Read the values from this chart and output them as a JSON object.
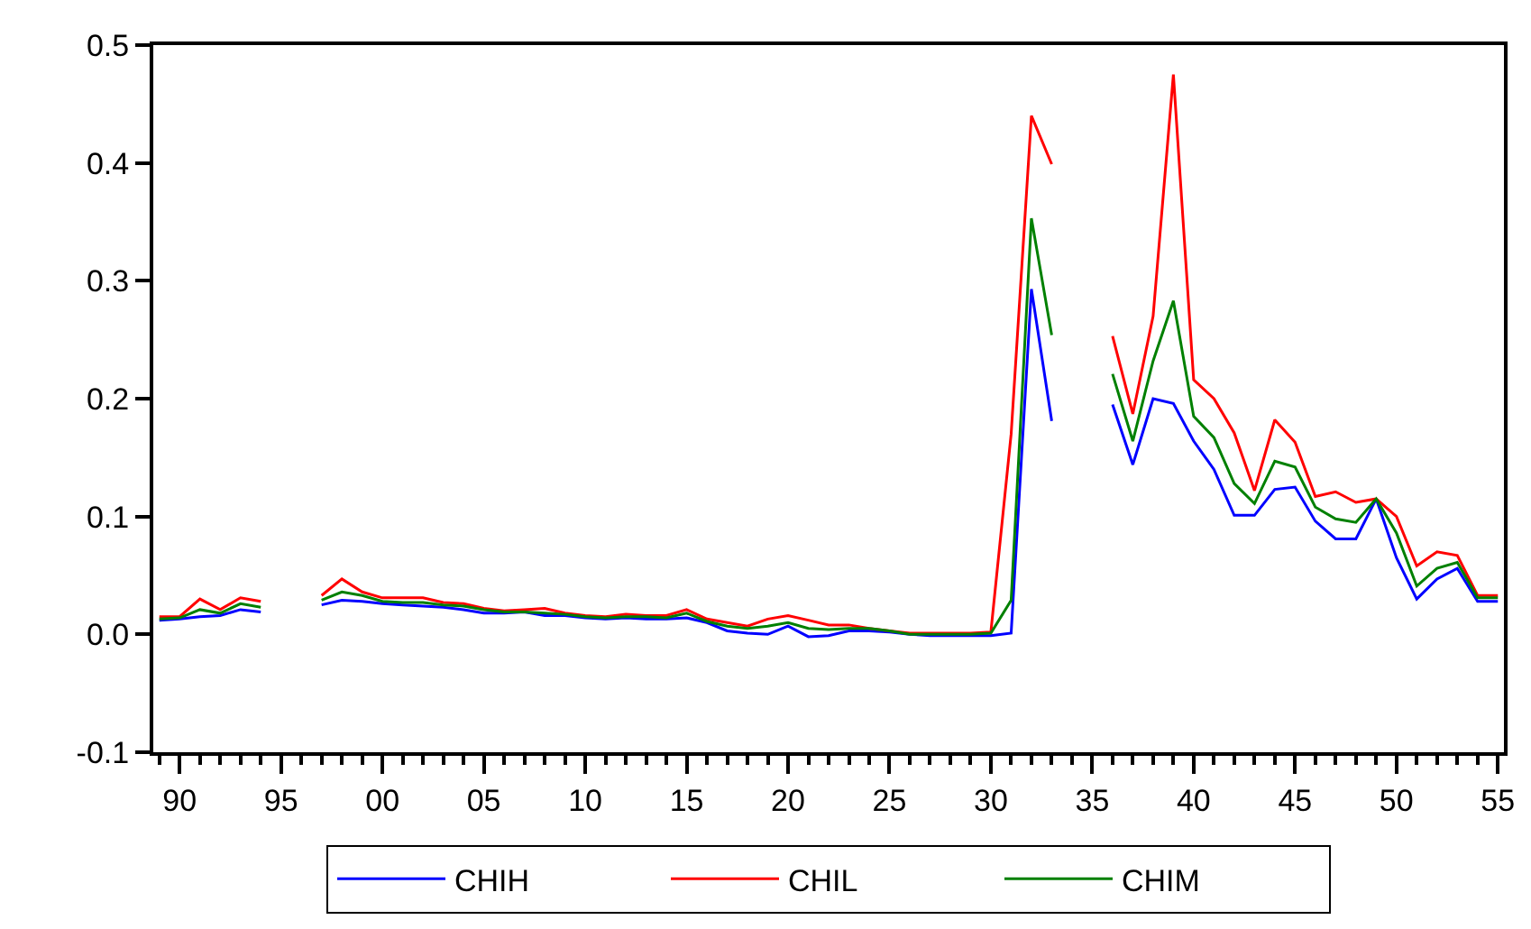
{
  "chart_data": {
    "type": "line",
    "x": [
      1889,
      1890,
      1891,
      1892,
      1893,
      1894,
      1895,
      1896,
      1897,
      1898,
      1899,
      1900,
      1901,
      1902,
      1903,
      1904,
      1905,
      1906,
      1907,
      1908,
      1909,
      1910,
      1911,
      1912,
      1913,
      1914,
      1915,
      1916,
      1917,
      1918,
      1919,
      1920,
      1921,
      1922,
      1923,
      1924,
      1925,
      1926,
      1927,
      1928,
      1929,
      1930,
      1931,
      1932,
      1933,
      1934,
      1935,
      1936,
      1937,
      1938,
      1939,
      1940,
      1941,
      1942,
      1943,
      1944,
      1945,
      1946,
      1947,
      1948,
      1949,
      1950,
      1951,
      1952,
      1953,
      1954,
      1955
    ],
    "series": [
      {
        "name": "CHIH",
        "color": "#0000ff",
        "values": [
          0.012,
          0.013,
          0.015,
          0.016,
          0.021,
          0.019,
          null,
          null,
          0.025,
          0.029,
          0.028,
          0.026,
          0.025,
          0.024,
          0.023,
          0.021,
          0.018,
          0.018,
          0.019,
          0.016,
          0.016,
          0.014,
          0.013,
          0.014,
          0.013,
          0.013,
          0.014,
          0.01,
          0.003,
          0.001,
          0.0,
          0.007,
          -0.002,
          -0.001,
          0.003,
          0.003,
          0.002,
          0.0,
          -0.001,
          -0.001,
          -0.001,
          -0.001,
          0.001,
          0.293,
          0.181,
          null,
          null,
          0.195,
          0.144,
          0.2,
          0.196,
          0.164,
          0.14,
          0.101,
          0.101,
          0.123,
          0.125,
          0.096,
          0.081,
          0.081,
          0.115,
          0.065,
          0.03,
          0.047,
          0.056,
          0.028,
          0.028
        ]
      },
      {
        "name": "CHIL",
        "color": "#ff0000",
        "values": [
          0.015,
          0.015,
          0.03,
          0.021,
          0.031,
          0.028,
          null,
          null,
          0.033,
          0.047,
          0.036,
          0.031,
          0.031,
          0.031,
          0.027,
          0.026,
          0.022,
          0.02,
          0.021,
          0.022,
          0.018,
          0.016,
          0.015,
          0.017,
          0.016,
          0.016,
          0.021,
          0.013,
          0.01,
          0.007,
          0.013,
          0.016,
          0.012,
          0.008,
          0.008,
          0.005,
          0.003,
          0.001,
          0.001,
          0.001,
          0.001,
          0.002,
          0.17,
          0.44,
          0.399,
          null,
          null,
          0.253,
          0.187,
          0.27,
          0.475,
          0.216,
          0.2,
          0.171,
          0.122,
          0.182,
          0.163,
          0.117,
          0.121,
          0.112,
          0.115,
          0.1,
          0.058,
          0.07,
          0.067,
          0.033,
          0.033
        ]
      },
      {
        "name": "CHIM",
        "color": "#008000",
        "values": [
          0.013,
          0.014,
          0.021,
          0.018,
          0.026,
          0.023,
          null,
          null,
          0.029,
          0.036,
          0.033,
          0.028,
          0.027,
          0.027,
          0.025,
          0.024,
          0.021,
          0.019,
          0.019,
          0.018,
          0.017,
          0.015,
          0.014,
          0.015,
          0.015,
          0.014,
          0.018,
          0.011,
          0.007,
          0.005,
          0.007,
          0.01,
          0.005,
          0.004,
          0.005,
          0.005,
          0.003,
          0.0,
          0.0,
          0.0,
          0.0,
          0.001,
          0.029,
          0.353,
          0.254,
          null,
          null,
          0.221,
          0.164,
          0.232,
          0.283,
          0.185,
          0.167,
          0.128,
          0.111,
          0.147,
          0.142,
          0.108,
          0.098,
          0.095,
          0.115,
          0.086,
          0.041,
          0.056,
          0.061,
          0.031,
          0.031
        ]
      }
    ],
    "xlim": [
      1888.7,
      1955.3
    ],
    "xticks": [
      {
        "value": 1890,
        "label": "90"
      },
      {
        "value": 1895,
        "label": "95"
      },
      {
        "value": 1900,
        "label": "00"
      },
      {
        "value": 1905,
        "label": "05"
      },
      {
        "value": 1910,
        "label": "10"
      },
      {
        "value": 1915,
        "label": "15"
      },
      {
        "value": 1920,
        "label": "20"
      },
      {
        "value": 1925,
        "label": "25"
      },
      {
        "value": 1930,
        "label": "30"
      },
      {
        "value": 1935,
        "label": "35"
      },
      {
        "value": 1940,
        "label": "40"
      },
      {
        "value": 1945,
        "label": "45"
      },
      {
        "value": 1950,
        "label": "50"
      },
      {
        "value": 1955,
        "label": "55"
      }
    ],
    "ylim": [
      -0.1,
      0.5
    ],
    "yticks": [
      -0.1,
      {
        "value": 0.0,
        "label": "0.0"
      },
      0.1,
      0.2,
      0.3,
      0.4,
      0.5
    ],
    "legend": "bottom",
    "marker": "none",
    "line_style": "solid"
  }
}
